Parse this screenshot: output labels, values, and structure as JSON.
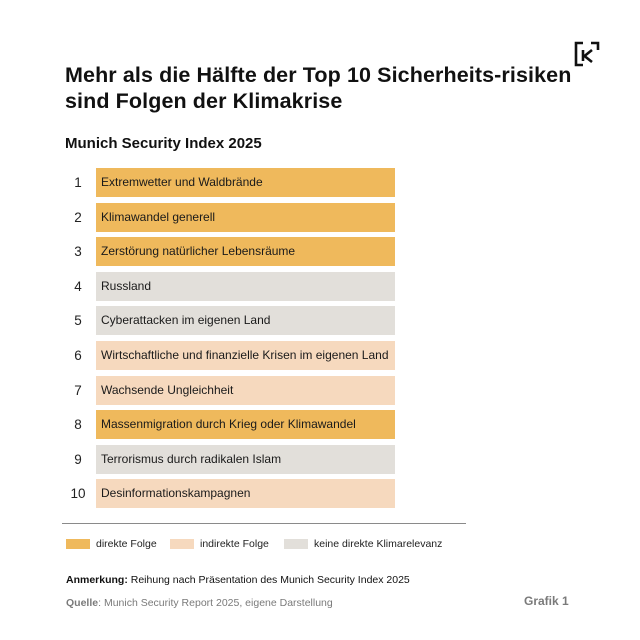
{
  "title": "Mehr als die Hälfte der Top 10 Sicherheits-risiken sind Folgen der Klimakrise",
  "subtitle": "Munich Security Index 2025",
  "logo_icon": "k-corner-logo-icon",
  "colors": {
    "direkte Folge": "#EFB95C",
    "indirekte Folge": "#F6D9BE",
    "keine direkte Klimarelevanz": "#E2DFDA"
  },
  "chart_data": {
    "type": "table",
    "title": "Munich Security Index 2025",
    "rows": [
      {
        "rank": "1",
        "label": "Extremwetter und Waldbrände",
        "category": "direkte Folge"
      },
      {
        "rank": "2",
        "label": "Klimawandel generell",
        "category": "direkte Folge"
      },
      {
        "rank": "3",
        "label": "Zerstörung natürlicher Lebensräume",
        "category": "direkte Folge"
      },
      {
        "rank": "4",
        "label": "Russland",
        "category": "keine direkte Klimarelevanz"
      },
      {
        "rank": "5",
        "label": "Cyberattacken im eigenen Land",
        "category": "keine direkte Klimarelevanz"
      },
      {
        "rank": "6",
        "label": "Wirtschaftliche und finanzielle Krisen im eigenen Land",
        "category": "indirekte Folge"
      },
      {
        "rank": "7",
        "label": "Wachsende Ungleichheit",
        "category": "indirekte Folge"
      },
      {
        "rank": "8",
        "label": "Massenmigration durch Krieg oder Klimawandel",
        "category": "direkte Folge"
      },
      {
        "rank": "9",
        "label": "Terrorismus durch radikalen Islam",
        "category": "keine direkte Klimarelevanz"
      },
      {
        "rank": "10",
        "label": "Desinformationskampagnen",
        "category": "indirekte Folge"
      }
    ],
    "legend": [
      {
        "label": "direkte Folge",
        "color": "#EFB95C"
      },
      {
        "label": "indirekte Folge",
        "color": "#F6D9BE"
      },
      {
        "label": "keine direkte Klimarelevanz",
        "color": "#E2DFDA"
      }
    ]
  },
  "note": {
    "label": "Anmerkung:",
    "text": " Reihung nach Präsentation des Munich Security Index 2025"
  },
  "source": {
    "label": "Quelle",
    "text": ": Munich Security Report 2025, eigene Darstellung"
  },
  "figure_label": "Grafik 1"
}
